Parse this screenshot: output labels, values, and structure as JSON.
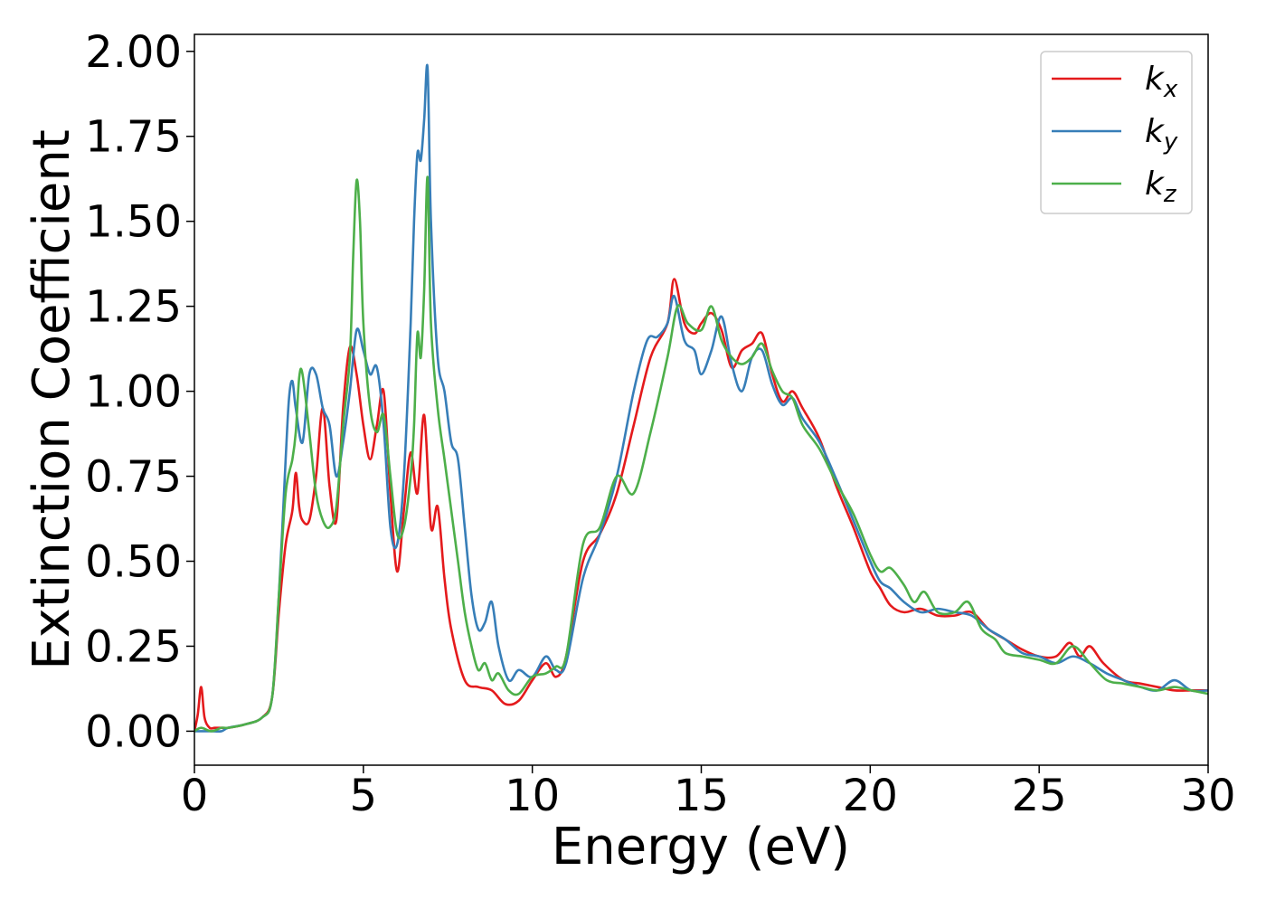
{
  "chart_data": {
    "type": "line",
    "title": "",
    "xlabel": "Energy (eV)",
    "ylabel": "Extinction Coefficient",
    "xlim": [
      0,
      30
    ],
    "ylim": [
      -0.1,
      2.05
    ],
    "xticks": [
      0,
      5,
      10,
      15,
      20,
      25,
      30
    ],
    "xtick_labels": [
      "0",
      "5",
      "10",
      "15",
      "20",
      "25",
      "30"
    ],
    "yticks": [
      0.0,
      0.25,
      0.5,
      0.75,
      1.0,
      1.25,
      1.5,
      1.75,
      2.0
    ],
    "ytick_labels": [
      "0.00",
      "0.25",
      "0.50",
      "0.75",
      "1.00",
      "1.25",
      "1.50",
      "1.75",
      "2.00"
    ],
    "grid": false,
    "legend_position": "top-right",
    "series": [
      {
        "name": "k_x",
        "label_base": "k",
        "label_sub": "x",
        "color": "#e41a1c",
        "x": [
          0,
          0.1,
          0.2,
          0.3,
          0.45,
          0.6,
          0.8,
          1.0,
          1.5,
          2.0,
          2.3,
          2.5,
          2.7,
          2.9,
          3.0,
          3.1,
          3.2,
          3.4,
          3.6,
          3.8,
          4.0,
          4.2,
          4.4,
          4.6,
          4.8,
          5.0,
          5.2,
          5.4,
          5.6,
          5.8,
          6.0,
          6.2,
          6.4,
          6.6,
          6.8,
          7.0,
          7.2,
          7.4,
          7.6,
          8.0,
          8.4,
          8.8,
          9.2,
          9.6,
          10.0,
          10.4,
          10.7,
          11.0,
          11.5,
          12.0,
          12.5,
          13.0,
          13.5,
          14.0,
          14.2,
          14.5,
          14.8,
          15.0,
          15.3,
          15.6,
          15.9,
          16.2,
          16.5,
          16.8,
          17.1,
          17.4,
          17.7,
          18.0,
          18.5,
          19.0,
          19.5,
          20.0,
          20.3,
          20.6,
          21.0,
          21.5,
          22.0,
          22.5,
          23.0,
          23.5,
          24.0,
          24.5,
          25.0,
          25.5,
          25.9,
          26.2,
          26.5,
          26.9,
          27.5,
          28.0,
          28.5,
          29.0,
          29.5,
          30.0
        ],
        "y": [
          0.0,
          0.05,
          0.13,
          0.04,
          0.01,
          0.01,
          0.01,
          0.01,
          0.02,
          0.04,
          0.1,
          0.35,
          0.55,
          0.65,
          0.76,
          0.66,
          0.62,
          0.62,
          0.75,
          0.95,
          0.72,
          0.62,
          0.95,
          1.13,
          1.05,
          0.9,
          0.8,
          0.9,
          1.0,
          0.7,
          0.47,
          0.65,
          0.82,
          0.7,
          0.93,
          0.6,
          0.66,
          0.45,
          0.3,
          0.15,
          0.13,
          0.12,
          0.08,
          0.09,
          0.15,
          0.2,
          0.16,
          0.22,
          0.5,
          0.58,
          0.7,
          0.9,
          1.1,
          1.2,
          1.33,
          1.2,
          1.17,
          1.2,
          1.23,
          1.18,
          1.07,
          1.12,
          1.14,
          1.17,
          1.05,
          0.97,
          1.0,
          0.95,
          0.86,
          0.72,
          0.6,
          0.47,
          0.42,
          0.37,
          0.35,
          0.36,
          0.34,
          0.34,
          0.35,
          0.3,
          0.27,
          0.24,
          0.22,
          0.22,
          0.26,
          0.22,
          0.25,
          0.2,
          0.15,
          0.14,
          0.13,
          0.12,
          0.12,
          0.12
        ]
      },
      {
        "name": "k_y",
        "label_base": "k",
        "label_sub": "y",
        "color": "#377eb8",
        "x": [
          0,
          0.2,
          0.5,
          0.8,
          1.0,
          1.5,
          2.0,
          2.3,
          2.5,
          2.7,
          2.8,
          2.9,
          3.0,
          3.2,
          3.4,
          3.6,
          3.8,
          4.0,
          4.2,
          4.4,
          4.6,
          4.8,
          5.0,
          5.2,
          5.4,
          5.6,
          5.8,
          6.0,
          6.2,
          6.4,
          6.5,
          6.6,
          6.7,
          6.8,
          6.9,
          7.0,
          7.2,
          7.4,
          7.6,
          7.8,
          8.0,
          8.2,
          8.4,
          8.6,
          8.8,
          9.0,
          9.3,
          9.6,
          10.0,
          10.4,
          10.7,
          11.0,
          11.5,
          12.0,
          12.5,
          13.0,
          13.4,
          13.7,
          14.0,
          14.2,
          14.5,
          14.8,
          15.0,
          15.3,
          15.6,
          15.9,
          16.2,
          16.5,
          16.8,
          17.1,
          17.4,
          17.7,
          18.0,
          18.5,
          19.0,
          19.5,
          20.0,
          20.3,
          20.6,
          21.0,
          21.5,
          22.0,
          22.5,
          23.0,
          23.5,
          24.0,
          24.5,
          25.0,
          25.5,
          26.0,
          26.5,
          27.0,
          27.5,
          28.0,
          28.5,
          29.0,
          29.5,
          30.0
        ],
        "y": [
          0.0,
          0.0,
          0.0,
          0.0,
          0.01,
          0.02,
          0.04,
          0.1,
          0.4,
          0.8,
          0.98,
          1.03,
          0.95,
          0.85,
          1.05,
          1.05,
          0.95,
          0.9,
          0.75,
          0.85,
          1.0,
          1.18,
          1.12,
          1.05,
          1.07,
          0.9,
          0.6,
          0.55,
          0.75,
          1.2,
          1.5,
          1.7,
          1.68,
          1.8,
          1.95,
          1.5,
          1.1,
          1.0,
          0.85,
          0.8,
          0.6,
          0.4,
          0.3,
          0.32,
          0.38,
          0.25,
          0.15,
          0.18,
          0.16,
          0.22,
          0.18,
          0.2,
          0.45,
          0.58,
          0.75,
          1.0,
          1.15,
          1.16,
          1.2,
          1.28,
          1.15,
          1.12,
          1.05,
          1.12,
          1.22,
          1.08,
          1.0,
          1.1,
          1.12,
          1.02,
          0.96,
          0.98,
          0.92,
          0.85,
          0.74,
          0.62,
          0.5,
          0.44,
          0.42,
          0.38,
          0.35,
          0.36,
          0.35,
          0.34,
          0.3,
          0.27,
          0.23,
          0.22,
          0.2,
          0.22,
          0.2,
          0.17,
          0.15,
          0.13,
          0.12,
          0.15,
          0.12,
          0.12
        ]
      },
      {
        "name": "k_z",
        "label_base": "k",
        "label_sub": "z",
        "color": "#4daf4a",
        "x": [
          0,
          0.2,
          0.5,
          0.8,
          1.0,
          1.5,
          2.0,
          2.3,
          2.5,
          2.7,
          2.9,
          3.0,
          3.1,
          3.2,
          3.4,
          3.6,
          3.8,
          4.0,
          4.2,
          4.4,
          4.6,
          4.7,
          4.8,
          4.9,
          5.0,
          5.2,
          5.4,
          5.6,
          5.8,
          6.0,
          6.2,
          6.4,
          6.5,
          6.6,
          6.7,
          6.8,
          6.9,
          7.0,
          7.2,
          7.4,
          7.6,
          7.8,
          8.0,
          8.2,
          8.4,
          8.6,
          8.8,
          9.0,
          9.3,
          9.6,
          10.0,
          10.4,
          10.7,
          11.0,
          11.5,
          12.0,
          12.5,
          13.0,
          13.5,
          14.0,
          14.3,
          14.6,
          15.0,
          15.3,
          15.6,
          15.9,
          16.2,
          16.5,
          16.8,
          17.1,
          17.4,
          17.7,
          18.0,
          18.5,
          19.0,
          19.5,
          20.0,
          20.3,
          20.6,
          21.0,
          21.3,
          21.6,
          22.0,
          22.5,
          22.9,
          23.3,
          23.7,
          24.0,
          24.5,
          25.0,
          25.5,
          26.0,
          26.5,
          27.0,
          27.5,
          28.0,
          28.5,
          29.0,
          29.5,
          30.0
        ],
        "y": [
          0.0,
          0.01,
          0.0,
          0.01,
          0.01,
          0.02,
          0.04,
          0.1,
          0.4,
          0.7,
          0.8,
          0.88,
          1.04,
          1.05,
          0.88,
          0.7,
          0.62,
          0.6,
          0.66,
          0.9,
          1.1,
          1.4,
          1.62,
          1.5,
          1.2,
          0.95,
          0.88,
          0.93,
          0.75,
          0.58,
          0.6,
          0.75,
          0.9,
          1.17,
          1.1,
          1.3,
          1.63,
          1.2,
          0.95,
          0.8,
          0.65,
          0.5,
          0.35,
          0.25,
          0.18,
          0.2,
          0.15,
          0.17,
          0.12,
          0.11,
          0.16,
          0.17,
          0.19,
          0.22,
          0.55,
          0.6,
          0.75,
          0.7,
          0.88,
          1.1,
          1.25,
          1.2,
          1.18,
          1.25,
          1.15,
          1.1,
          1.08,
          1.1,
          1.14,
          1.06,
          1.0,
          0.98,
          0.9,
          0.83,
          0.73,
          0.64,
          0.52,
          0.47,
          0.48,
          0.43,
          0.38,
          0.41,
          0.35,
          0.35,
          0.38,
          0.3,
          0.27,
          0.23,
          0.22,
          0.21,
          0.2,
          0.25,
          0.2,
          0.15,
          0.14,
          0.13,
          0.12,
          0.13,
          0.12,
          0.11
        ]
      }
    ]
  }
}
